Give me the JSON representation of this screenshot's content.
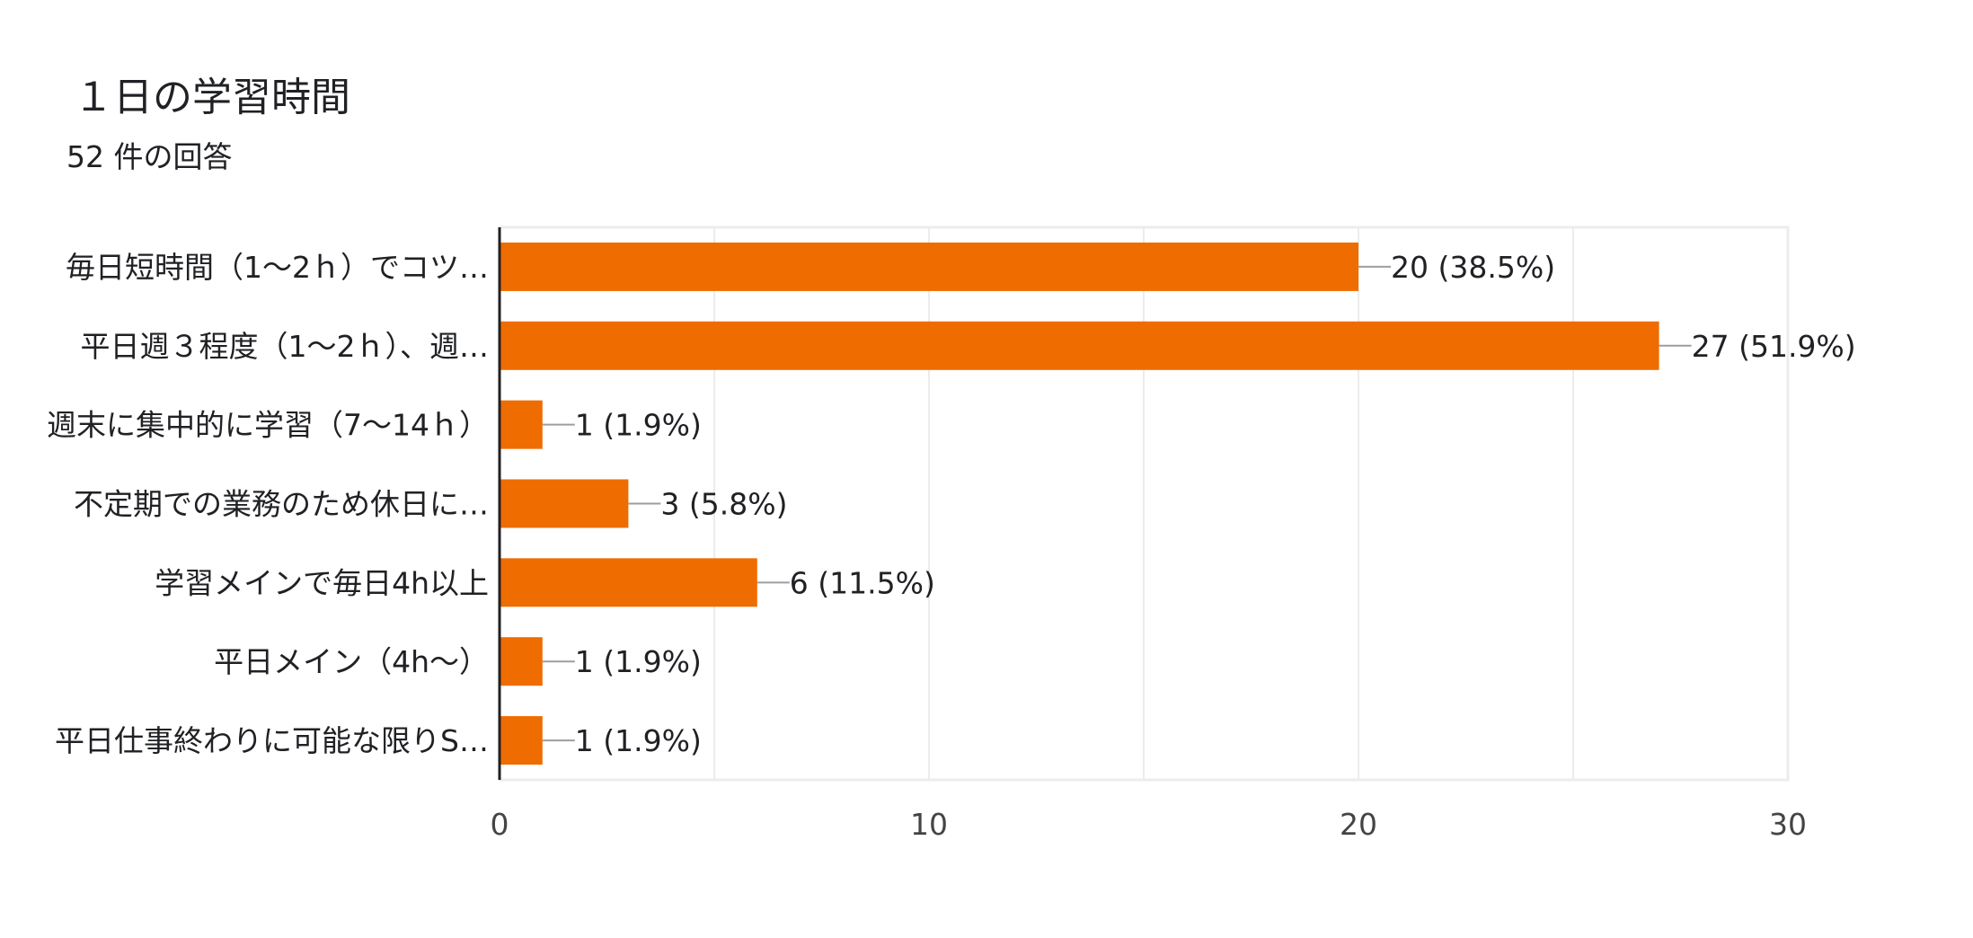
{
  "header": {
    "title": "１日の学習時間",
    "response_count": "52 件の回答"
  },
  "colors": {
    "bar": "#ef6c00",
    "grid": "#ececec",
    "axis": "#202124",
    "leader": "#9e9e9e",
    "text": "#202124",
    "tick_text": "#444444"
  },
  "chart_data": {
    "type": "bar",
    "orientation": "horizontal",
    "title": "１日の学習時間",
    "subtitle": "52 件の回答",
    "categories": [
      "毎日短時間（1〜2ｈ）でコツ…",
      "平日週３程度（1〜2ｈ）、週…",
      "週末に集中的に学習（7〜14ｈ）",
      "不定期での業務のため休日に…",
      "学習メインで毎日4h以上",
      "平日メイン（4h〜）",
      "平日仕事終わりに可能な限りS…"
    ],
    "values": [
      20,
      27,
      1,
      3,
      6,
      1,
      1
    ],
    "data_labels": [
      "20 (38.5%)",
      "27 (51.9%)",
      "1 (1.9%)",
      "3 (5.8%)",
      "6 (11.5%)",
      "1 (1.9%)",
      "1 (1.9%)"
    ],
    "xlim": [
      0,
      30
    ],
    "xticks": [
      "0",
      "10",
      "20",
      "30"
    ],
    "grid": true
  }
}
